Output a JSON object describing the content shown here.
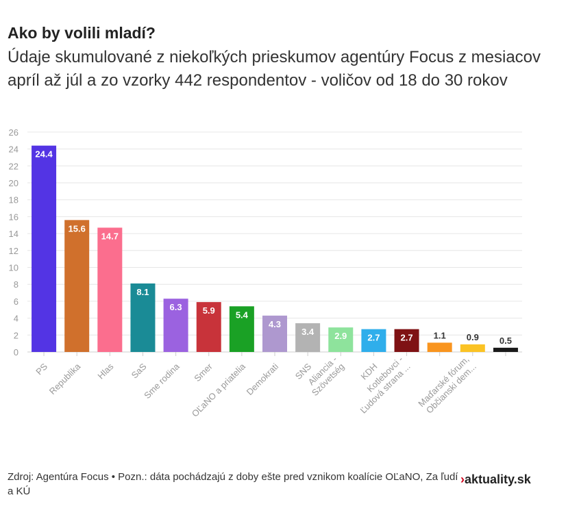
{
  "title": "Ako by volili mladí?",
  "subtitle": "Údaje skumulované z niekoľkých prieskumov agentúry Focus z mesiacov apríl až júl a zo vzorky 442 respondentov - voličov od 18 do 30 rokov",
  "footer": "Zdroj: Agentúra Focus • Pozn.: dáta pochádzajú z doby ešte pred vznikom koalície OĽaNO, Za ľudí a KÚ",
  "logo": {
    "mark": "›",
    "text": "aktuality.sk"
  },
  "chart_data": {
    "type": "bar",
    "title": "",
    "xlabel": "",
    "ylabel": "",
    "ylim": [
      0,
      26
    ],
    "yticks": [
      0,
      2,
      4,
      6,
      8,
      10,
      12,
      14,
      16,
      18,
      20,
      22,
      24,
      26
    ],
    "grid": true,
    "categories": [
      "PS",
      "Republika",
      "Hlas",
      "SaS",
      "Sme rodina",
      "Smer",
      "OĽaNO a priatelia",
      "Demokrati",
      "SNS",
      "Aliancia - Szövetség",
      "KDH",
      "Kotlebovci - Ľudová strana ...",
      "",
      "Maďarské fórum, Občianski dem...",
      ""
    ],
    "category_lines": [
      [
        "PS"
      ],
      [
        "Republika"
      ],
      [
        "Hlas"
      ],
      [
        "SaS"
      ],
      [
        "Sme rodina"
      ],
      [
        "Smer"
      ],
      [
        "OĽaNO a priatelia"
      ],
      [
        "Demokrati"
      ],
      [
        "SNS"
      ],
      [
        "Aliancia -",
        "Szövetség"
      ],
      [
        "KDH"
      ],
      [
        "Kotlebovci -",
        "Ľudová strana ..."
      ],
      [
        ""
      ],
      [
        "Maďarské fórum,",
        "Občianski dem..."
      ],
      [
        ""
      ]
    ],
    "values": [
      24.4,
      15.6,
      14.7,
      8.1,
      6.3,
      5.9,
      5.4,
      4.3,
      3.4,
      2.9,
      2.7,
      2.7,
      1.1,
      0.9,
      0.5
    ],
    "colors": [
      "#5334e4",
      "#d0702c",
      "#fb6e8e",
      "#1a8b96",
      "#9b62e0",
      "#c8333a",
      "#1aa125",
      "#ae98cf",
      "#b3b3b3",
      "#8ee39c",
      "#2faeeb",
      "#7f1214",
      "#f9951f",
      "#fbc324",
      "#1a1a1a"
    ]
  }
}
